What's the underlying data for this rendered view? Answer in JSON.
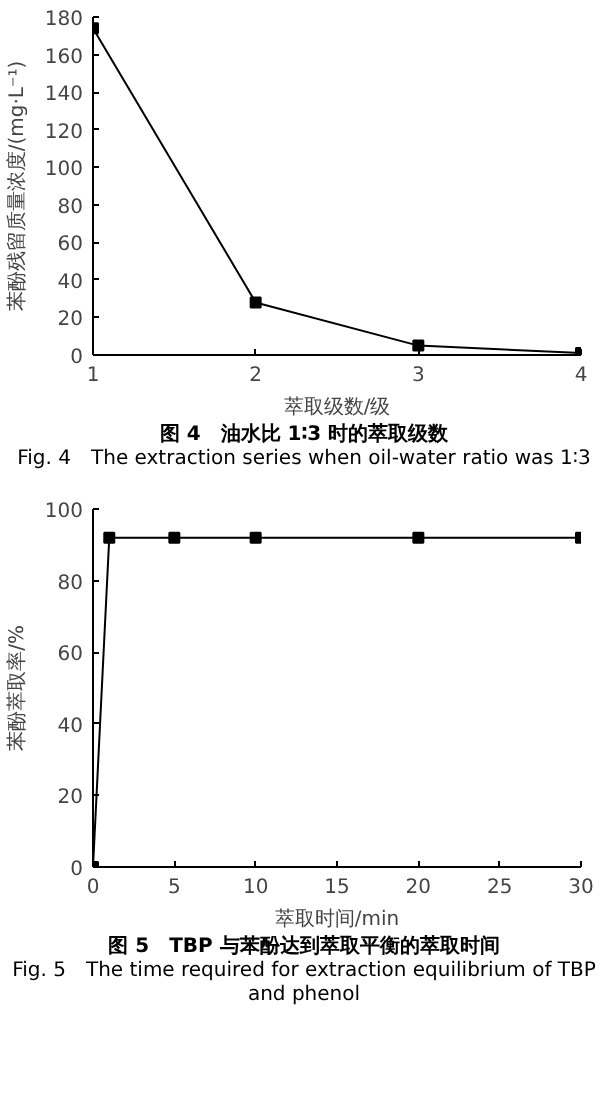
{
  "chart_data": [
    {
      "type": "line",
      "title": "图 4　油水比 1∶3 时的萃取级数",
      "subtitle": "Fig. 4　The extraction series when oil-water ratio was 1∶3",
      "xlabel": "萃取级数/级",
      "ylabel": "苯酚残留质量浓度/(mg·L⁻¹)",
      "x": [
        1,
        2,
        3,
        4
      ],
      "series": [
        {
          "color": "#000000",
          "values": [
            174,
            28,
            5,
            1
          ]
        }
      ],
      "xlim": [
        1,
        4
      ],
      "xticks": [
        1,
        2,
        3,
        4
      ],
      "ylim": [
        0,
        180
      ],
      "yticks": [
        0,
        20,
        40,
        60,
        80,
        100,
        120,
        140,
        160,
        180
      ],
      "marker": "square",
      "grid": false
    },
    {
      "type": "line",
      "title": "图 5　TBP 与苯酚达到萃取平衡的萃取时间",
      "subtitle": "Fig. 5　The time required for extraction equilibrium of TBP and phenol",
      "xlabel": "萃取时间/min",
      "ylabel": "苯酚萃取率/%",
      "x": [
        0,
        1,
        5,
        10,
        20,
        30
      ],
      "series": [
        {
          "color": "#000000",
          "values": [
            0,
            92,
            92,
            92,
            92,
            92
          ]
        }
      ],
      "xlim": [
        0,
        30
      ],
      "xticks": [
        0,
        5,
        10,
        15,
        20,
        25,
        30
      ],
      "ylim": [
        0,
        100
      ],
      "yticks": [
        0,
        20,
        40,
        60,
        80,
        100
      ],
      "marker": "square",
      "grid": false
    }
  ]
}
